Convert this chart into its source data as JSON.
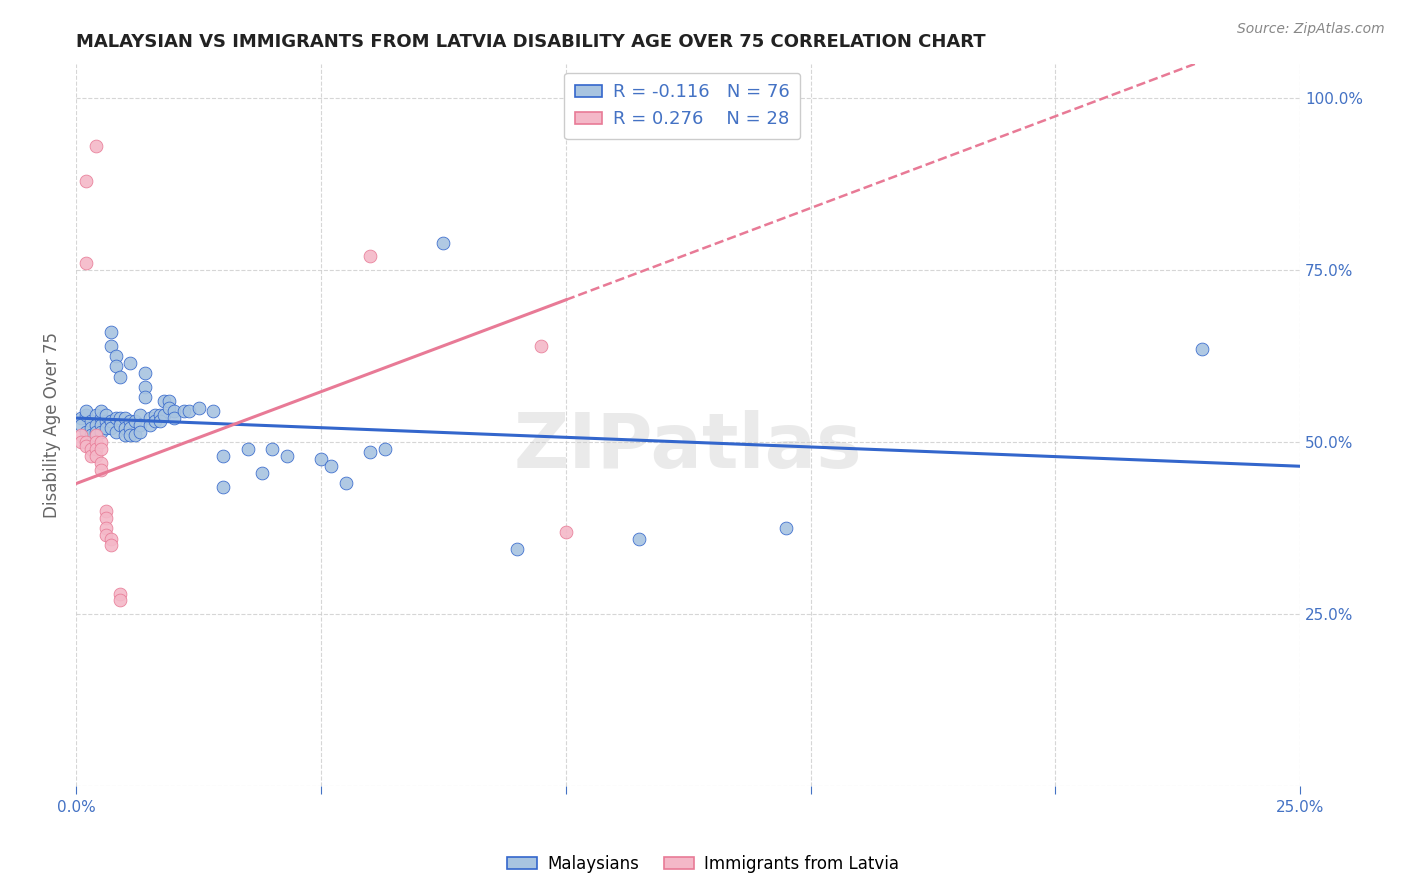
{
  "title": "MALAYSIAN VS IMMIGRANTS FROM LATVIA DISABILITY AGE OVER 75 CORRELATION CHART",
  "source": "Source: ZipAtlas.com",
  "ylabel": "Disability Age Over 75",
  "xlim": [
    0.0,
    0.25
  ],
  "ylim": [
    0.0,
    1.05
  ],
  "malaysian_color": "#a8c4e0",
  "latvian_color": "#f4b8c8",
  "malaysian_line_color": "#3366cc",
  "latvian_line_color": "#e87a96",
  "R_malaysian": -0.116,
  "N_malaysian": 76,
  "R_latvian": 0.276,
  "N_latvian": 28,
  "background_color": "#ffffff",
  "grid_color": "#cccccc",
  "malaysian_scatter": [
    [
      0.001,
      0.535
    ],
    [
      0.001,
      0.525
    ],
    [
      0.002,
      0.54
    ],
    [
      0.002,
      0.515
    ],
    [
      0.002,
      0.545
    ],
    [
      0.003,
      0.53
    ],
    [
      0.003,
      0.52
    ],
    [
      0.003,
      0.51
    ],
    [
      0.004,
      0.54
    ],
    [
      0.004,
      0.525
    ],
    [
      0.004,
      0.515
    ],
    [
      0.005,
      0.535
    ],
    [
      0.005,
      0.525
    ],
    [
      0.005,
      0.545
    ],
    [
      0.005,
      0.515
    ],
    [
      0.006,
      0.53
    ],
    [
      0.006,
      0.52
    ],
    [
      0.006,
      0.54
    ],
    [
      0.007,
      0.66
    ],
    [
      0.007,
      0.64
    ],
    [
      0.007,
      0.53
    ],
    [
      0.007,
      0.52
    ],
    [
      0.008,
      0.625
    ],
    [
      0.008,
      0.61
    ],
    [
      0.008,
      0.535
    ],
    [
      0.008,
      0.515
    ],
    [
      0.009,
      0.535
    ],
    [
      0.009,
      0.525
    ],
    [
      0.009,
      0.595
    ],
    [
      0.01,
      0.535
    ],
    [
      0.01,
      0.52
    ],
    [
      0.01,
      0.51
    ],
    [
      0.011,
      0.615
    ],
    [
      0.011,
      0.53
    ],
    [
      0.011,
      0.52
    ],
    [
      0.011,
      0.51
    ],
    [
      0.012,
      0.53
    ],
    [
      0.012,
      0.51
    ],
    [
      0.013,
      0.54
    ],
    [
      0.013,
      0.525
    ],
    [
      0.013,
      0.515
    ],
    [
      0.014,
      0.6
    ],
    [
      0.014,
      0.58
    ],
    [
      0.014,
      0.565
    ],
    [
      0.015,
      0.535
    ],
    [
      0.015,
      0.525
    ],
    [
      0.016,
      0.54
    ],
    [
      0.016,
      0.53
    ],
    [
      0.017,
      0.54
    ],
    [
      0.017,
      0.53
    ],
    [
      0.018,
      0.56
    ],
    [
      0.018,
      0.54
    ],
    [
      0.019,
      0.56
    ],
    [
      0.019,
      0.55
    ],
    [
      0.02,
      0.545
    ],
    [
      0.02,
      0.535
    ],
    [
      0.022,
      0.545
    ],
    [
      0.023,
      0.545
    ],
    [
      0.025,
      0.55
    ],
    [
      0.028,
      0.545
    ],
    [
      0.03,
      0.435
    ],
    [
      0.03,
      0.48
    ],
    [
      0.035,
      0.49
    ],
    [
      0.038,
      0.455
    ],
    [
      0.04,
      0.49
    ],
    [
      0.043,
      0.48
    ],
    [
      0.05,
      0.475
    ],
    [
      0.052,
      0.465
    ],
    [
      0.055,
      0.44
    ],
    [
      0.06,
      0.485
    ],
    [
      0.063,
      0.49
    ],
    [
      0.075,
      0.79
    ],
    [
      0.09,
      0.345
    ],
    [
      0.115,
      0.36
    ],
    [
      0.145,
      0.375
    ],
    [
      0.23,
      0.635
    ]
  ],
  "latvian_scatter": [
    [
      0.001,
      0.51
    ],
    [
      0.001,
      0.5
    ],
    [
      0.002,
      0.5
    ],
    [
      0.002,
      0.495
    ],
    [
      0.003,
      0.49
    ],
    [
      0.003,
      0.48
    ],
    [
      0.004,
      0.51
    ],
    [
      0.004,
      0.5
    ],
    [
      0.004,
      0.49
    ],
    [
      0.004,
      0.48
    ],
    [
      0.005,
      0.5
    ],
    [
      0.005,
      0.49
    ],
    [
      0.005,
      0.47
    ],
    [
      0.005,
      0.46
    ],
    [
      0.006,
      0.4
    ],
    [
      0.006,
      0.39
    ],
    [
      0.006,
      0.375
    ],
    [
      0.006,
      0.365
    ],
    [
      0.007,
      0.36
    ],
    [
      0.007,
      0.35
    ],
    [
      0.009,
      0.28
    ],
    [
      0.009,
      0.27
    ],
    [
      0.002,
      0.88
    ],
    [
      0.004,
      0.93
    ],
    [
      0.002,
      0.76
    ],
    [
      0.06,
      0.77
    ],
    [
      0.095,
      0.64
    ],
    [
      0.1,
      0.37
    ]
  ]
}
